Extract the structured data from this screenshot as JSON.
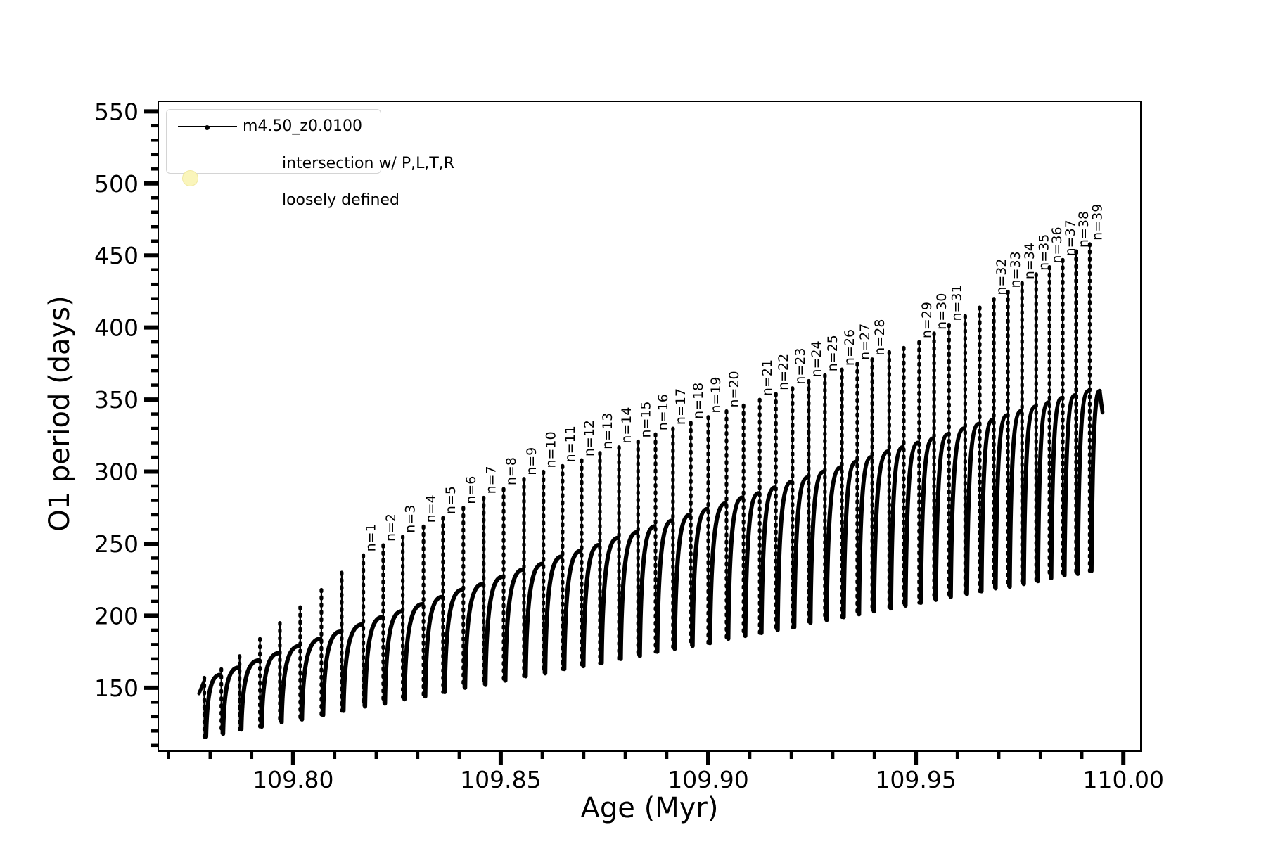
{
  "figure": {
    "background": "#ffffff",
    "line_color": "#000000",
    "intersection_color": "#faf5bb",
    "intersection_border": "#f0e9a2"
  },
  "legend": {
    "series_label": "m4.50_z0.0100",
    "intersection_label_line1": "intersection w/ P,L,T,R",
    "intersection_label_line2": "loosely defined"
  },
  "axes": {
    "xlabel": "Age (Myr)",
    "ylabel": "O1 period (days)",
    "xlim": [
      109.7675,
      110.0042
    ],
    "ylim": [
      106,
      557
    ],
    "x_major_ticks": [
      {
        "v": 109.8,
        "t": "109.80"
      },
      {
        "v": 109.85,
        "t": "109.85"
      },
      {
        "v": 109.9,
        "t": "109.90"
      },
      {
        "v": 109.95,
        "t": "109.95"
      },
      {
        "v": 110.0,
        "t": "110.00"
      }
    ],
    "y_major_ticks": [
      {
        "v": 150,
        "t": "150"
      },
      {
        "v": 200,
        "t": "200"
      },
      {
        "v": 250,
        "t": "250"
      },
      {
        "v": 300,
        "t": "300"
      },
      {
        "v": 350,
        "t": "350"
      },
      {
        "v": 400,
        "t": "400"
      },
      {
        "v": 450,
        "t": "450"
      },
      {
        "v": 500,
        "t": "500"
      },
      {
        "v": 550,
        "t": "550"
      }
    ],
    "x_minor_step": 0.01,
    "y_minor_step": 10,
    "grid": false,
    "tick_direction": "out"
  },
  "chart_data": {
    "type": "line",
    "title": "",
    "series_name": "m4.50_z0.0100",
    "xlabel": "Age (Myr)",
    "ylabel": "O1 period (days)",
    "legend_position": "upper left",
    "description": "Sawtooth evolution of O1 pulsation period vs age; each cycle rises in an arc then drops sharply; narrow vertical spikes at each drop, many annotated n=1..n=39 marking loosely-defined intersections with P,L,T,R",
    "start_point": {
      "age": 109.778,
      "period": 146
    },
    "end_point": {
      "age": 109.9943,
      "period": 356,
      "hook_period": 341
    },
    "cycles": [
      {
        "age": 109.7786,
        "label": null,
        "peak": 157,
        "ridge": 155,
        "dip": 116
      },
      {
        "age": 109.7827,
        "label": null,
        "peak": 163,
        "ridge": 159,
        "dip": 118
      },
      {
        "age": 109.7871,
        "label": null,
        "peak": 172,
        "ridge": 164,
        "dip": 121
      },
      {
        "age": 109.792,
        "label": null,
        "peak": 184,
        "ridge": 169,
        "dip": 123
      },
      {
        "age": 109.7968,
        "label": null,
        "peak": 195,
        "ridge": 174,
        "dip": 126
      },
      {
        "age": 109.8017,
        "label": null,
        "peak": 206,
        "ridge": 179,
        "dip": 128
      },
      {
        "age": 109.8068,
        "label": null,
        "peak": 218,
        "ridge": 184,
        "dip": 131
      },
      {
        "age": 109.8117,
        "label": null,
        "peak": 230,
        "ridge": 189,
        "dip": 134
      },
      {
        "age": 109.8169,
        "label": "n=1",
        "peak": 242,
        "ridge": 194,
        "dip": 137
      },
      {
        "age": 109.8217,
        "label": "n=2",
        "peak": 249,
        "ridge": 199,
        "dip": 139
      },
      {
        "age": 109.8264,
        "label": "n=3",
        "peak": 255,
        "ridge": 203,
        "dip": 142
      },
      {
        "age": 109.8314,
        "label": "n=4",
        "peak": 262,
        "ridge": 208,
        "dip": 144
      },
      {
        "age": 109.8361,
        "label": "n=5",
        "peak": 268,
        "ridge": 213,
        "dip": 147
      },
      {
        "age": 109.841,
        "label": "n=6",
        "peak": 275,
        "ridge": 218,
        "dip": 150
      },
      {
        "age": 109.8459,
        "label": "n=7",
        "peak": 282,
        "ridge": 222,
        "dip": 152
      },
      {
        "age": 109.8507,
        "label": "n=8",
        "peak": 288,
        "ridge": 227,
        "dip": 155
      },
      {
        "age": 109.8556,
        "label": "n=9",
        "peak": 295,
        "ridge": 232,
        "dip": 158
      },
      {
        "age": 109.8603,
        "label": "n=10",
        "peak": 300,
        "ridge": 236,
        "dip": 160
      },
      {
        "age": 109.8649,
        "label": "n=11",
        "peak": 304,
        "ridge": 241,
        "dip": 163
      },
      {
        "age": 109.8695,
        "label": "n=12",
        "peak": 308,
        "ridge": 245,
        "dip": 165
      },
      {
        "age": 109.8739,
        "label": "n=13",
        "peak": 313,
        "ridge": 249,
        "dip": 167
      },
      {
        "age": 109.8785,
        "label": "n=14",
        "peak": 317,
        "ridge": 254,
        "dip": 170
      },
      {
        "age": 109.8831,
        "label": "n=15",
        "peak": 321,
        "ridge": 258,
        "dip": 172
      },
      {
        "age": 109.8873,
        "label": "n=16",
        "peak": 326,
        "ridge": 262,
        "dip": 175
      },
      {
        "age": 109.8915,
        "label": "n=17",
        "peak": 330,
        "ridge": 266,
        "dip": 177
      },
      {
        "age": 109.8958,
        "label": "n=18",
        "peak": 334,
        "ridge": 270,
        "dip": 179
      },
      {
        "age": 109.9,
        "label": "n=19",
        "peak": 338,
        "ridge": 274,
        "dip": 181
      },
      {
        "age": 109.9044,
        "label": "n=20",
        "peak": 342,
        "ridge": 278,
        "dip": 184
      },
      {
        "age": 109.9085,
        "label": null,
        "peak": 346,
        "ridge": 282,
        "dip": 186
      },
      {
        "age": 109.9124,
        "label": "n=21",
        "peak": 350,
        "ridge": 285,
        "dip": 188
      },
      {
        "age": 109.9163,
        "label": "n=22",
        "peak": 354,
        "ridge": 289,
        "dip": 190
      },
      {
        "age": 109.9203,
        "label": "n=23",
        "peak": 358,
        "ridge": 293,
        "dip": 192
      },
      {
        "age": 109.9242,
        "label": "n=24",
        "peak": 363,
        "ridge": 296,
        "dip": 195
      },
      {
        "age": 109.9281,
        "label": "n=25",
        "peak": 367,
        "ridge": 300,
        "dip": 197
      },
      {
        "age": 109.9322,
        "label": "n=26",
        "peak": 371,
        "ridge": 303,
        "dip": 199
      },
      {
        "age": 109.9359,
        "label": "n=27",
        "peak": 375,
        "ridge": 307,
        "dip": 201
      },
      {
        "age": 109.9395,
        "label": "n=28",
        "peak": 378,
        "ridge": 310,
        "dip": 203
      },
      {
        "age": 109.9436,
        "label": null,
        "peak": 383,
        "ridge": 314,
        "dip": 205
      },
      {
        "age": 109.9471,
        "label": null,
        "peak": 386,
        "ridge": 317,
        "dip": 207
      },
      {
        "age": 109.9508,
        "label": "n=29",
        "peak": 390,
        "ridge": 320,
        "dip": 209
      },
      {
        "age": 109.9544,
        "label": "n=30",
        "peak": 396,
        "ridge": 323,
        "dip": 211
      },
      {
        "age": 109.958,
        "label": "n=31",
        "peak": 402,
        "ridge": 326,
        "dip": 213
      },
      {
        "age": 109.9619,
        "label": null,
        "peak": 408,
        "ridge": 330,
        "dip": 215
      },
      {
        "age": 109.9654,
        "label": null,
        "peak": 414,
        "ridge": 333,
        "dip": 217
      },
      {
        "age": 109.9688,
        "label": "n=32",
        "peak": 420,
        "ridge": 336,
        "dip": 219
      },
      {
        "age": 109.9722,
        "label": "n=33",
        "peak": 425,
        "ridge": 339,
        "dip": 220
      },
      {
        "age": 109.9756,
        "label": "n=34",
        "peak": 431,
        "ridge": 342,
        "dip": 222
      },
      {
        "age": 109.979,
        "label": "n=35",
        "peak": 437,
        "ridge": 345,
        "dip": 224
      },
      {
        "age": 109.9822,
        "label": "n=36",
        "peak": 442,
        "ridge": 348,
        "dip": 226
      },
      {
        "age": 109.9854,
        "label": "n=37",
        "peak": 447,
        "ridge": 351,
        "dip": 228
      },
      {
        "age": 109.9886,
        "label": "n=38",
        "peak": 453,
        "ridge": 353,
        "dip": 229
      },
      {
        "age": 109.9919,
        "label": "n=39",
        "peak": 458,
        "ridge": 356,
        "dip": 231
      }
    ]
  }
}
